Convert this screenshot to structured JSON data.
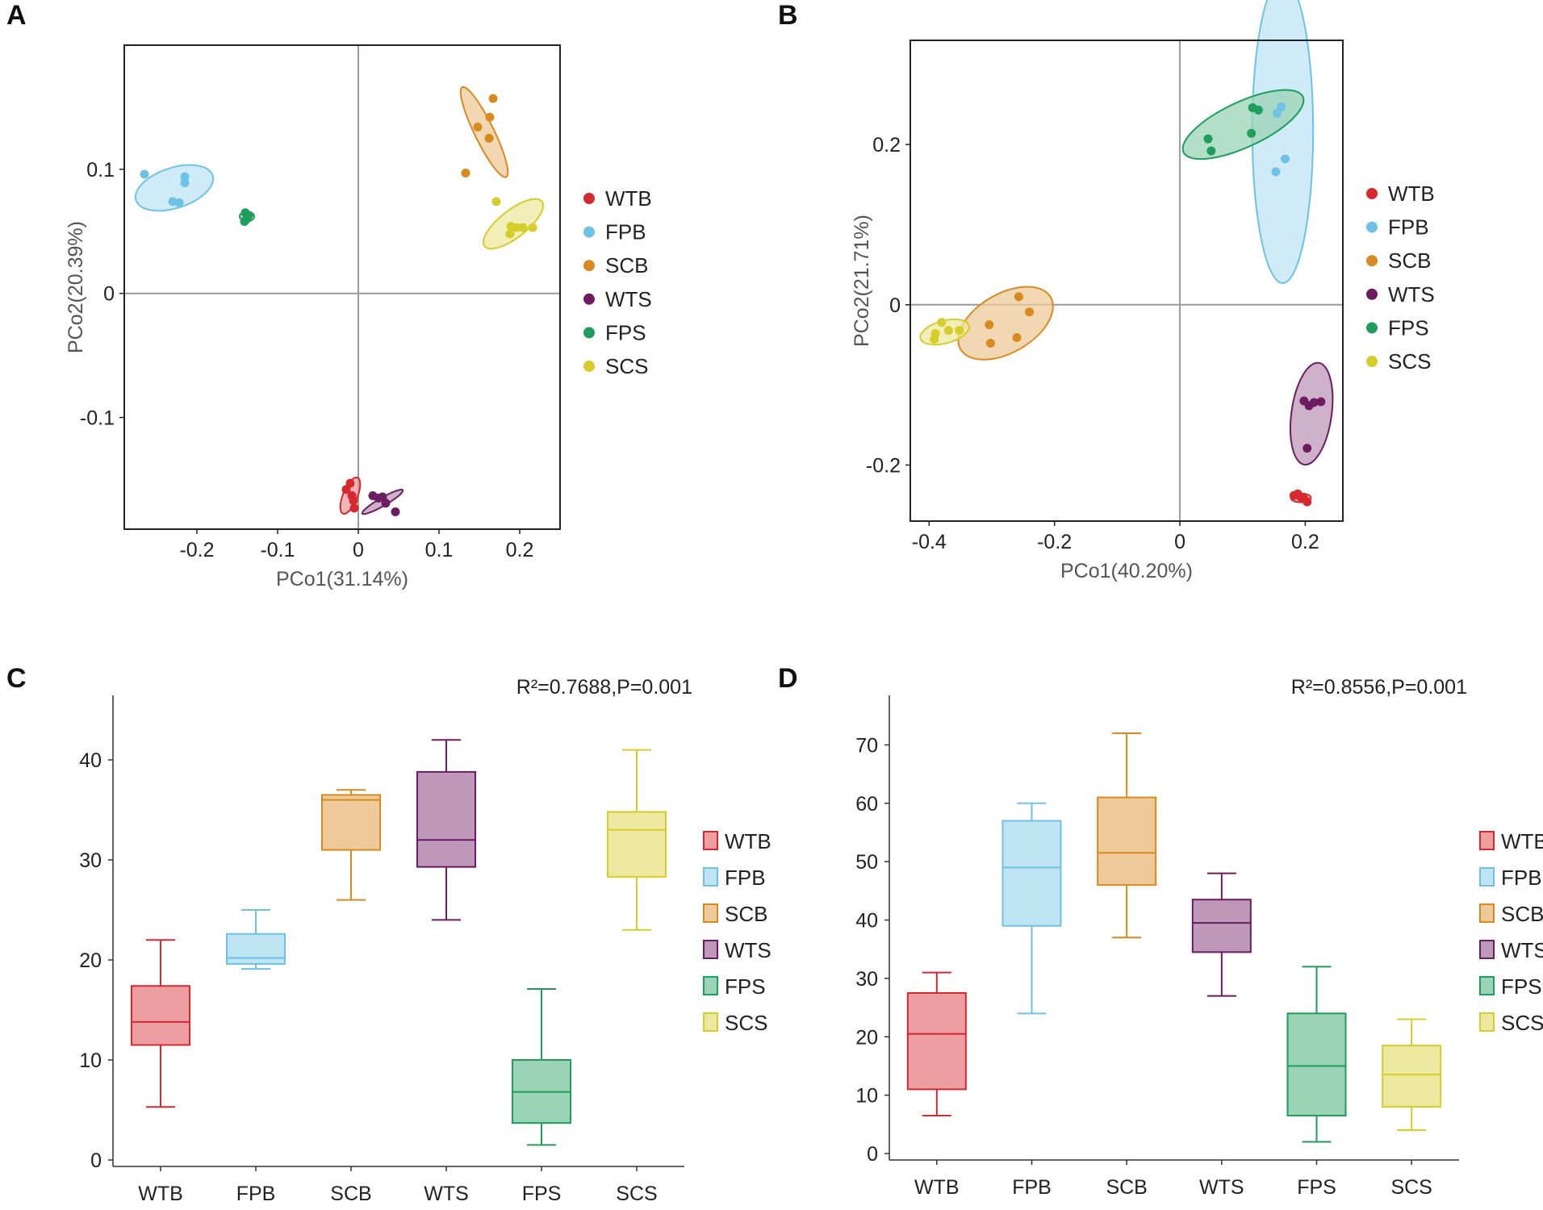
{
  "figure": {
    "groups": [
      "WTB",
      "FPB",
      "SCB",
      "WTS",
      "FPS",
      "SCS"
    ],
    "colors": {
      "WTB": "#d7282f",
      "FPB": "#6ec2e6",
      "SCB": "#d98a1e",
      "WTS": "#6d1b62",
      "FPS": "#1e9e5a",
      "SCS": "#d6cc2a"
    }
  },
  "chart_data": [
    {
      "panel": "A",
      "type": "scatter",
      "xlabel": "PCo1(31.14%)",
      "ylabel": "PCo2(20.39%)",
      "xlim": [
        -0.29,
        0.25
      ],
      "ylim": [
        -0.19,
        0.2
      ],
      "xticks": [
        -0.2,
        -0.1,
        0,
        0.1,
        0.2
      ],
      "xtick_labels": [
        "-0.2",
        "-0.1",
        "0",
        "0.1",
        "0.2"
      ],
      "yticks": [
        -0.1,
        0,
        0.1
      ],
      "ytick_labels": [
        "-0.1",
        "0",
        "0.1"
      ],
      "legend": [
        "WTB",
        "FPB",
        "SCB",
        "WTS",
        "FPS",
        "SCS"
      ],
      "series": [
        {
          "name": "WTB",
          "points": [
            [
              -0.015,
              -0.158
            ],
            [
              -0.01,
              -0.153
            ],
            [
              -0.008,
              -0.163
            ],
            [
              -0.006,
              -0.167
            ],
            [
              -0.005,
              -0.173
            ]
          ],
          "ellipse": {
            "cx": -0.01,
            "cy": -0.163,
            "rx": 0.024,
            "ry": 0.009,
            "angle": -68
          }
        },
        {
          "name": "FPB",
          "points": [
            [
              -0.265,
              0.096
            ],
            [
              -0.215,
              0.094
            ],
            [
              -0.215,
              0.089
            ],
            [
              -0.23,
              0.074
            ],
            [
              -0.222,
              0.073
            ]
          ],
          "ellipse": {
            "cx": -0.228,
            "cy": 0.085,
            "rx": 0.05,
            "ry": 0.025,
            "angle": -18
          }
        },
        {
          "name": "SCB",
          "points": [
            [
              0.167,
              0.157
            ],
            [
              0.163,
              0.142
            ],
            [
              0.148,
              0.134
            ],
            [
              0.162,
              0.125
            ],
            [
              0.133,
              0.097
            ]
          ],
          "ellipse": {
            "cx": 0.156,
            "cy": 0.13,
            "rx": 0.062,
            "ry": 0.012,
            "angle": 64
          }
        },
        {
          "name": "WTS",
          "points": [
            [
              0.018,
              -0.163
            ],
            [
              0.025,
              -0.165
            ],
            [
              0.03,
              -0.164
            ],
            [
              0.034,
              -0.169
            ],
            [
              0.046,
              -0.176
            ]
          ],
          "ellipse": {
            "cx": 0.03,
            "cy": -0.168,
            "rx": 0.029,
            "ry": 0.005,
            "angle": -30
          }
        },
        {
          "name": "FPS",
          "points": [
            [
              -0.14,
              0.065
            ],
            [
              -0.136,
              0.063
            ],
            [
              -0.138,
              0.06
            ],
            [
              -0.141,
              0.058
            ]
          ],
          "ellipse": {
            "cx": -0.138,
            "cy": 0.062,
            "rx": 0.009,
            "ry": 0.006,
            "angle": 0
          }
        },
        {
          "name": "SCS",
          "points": [
            [
              0.171,
              0.074
            ],
            [
              0.189,
              0.054
            ],
            [
              0.196,
              0.053
            ],
            [
              0.204,
              0.053
            ],
            [
              0.216,
              0.053
            ],
            [
              0.188,
              0.048
            ]
          ],
          "ellipse": {
            "cx": 0.192,
            "cy": 0.056,
            "rx": 0.045,
            "ry": 0.017,
            "angle": -38
          }
        }
      ]
    },
    {
      "panel": "B",
      "type": "scatter",
      "xlabel": "PCo1(40.20%)",
      "ylabel": "PCo2(21.71%)",
      "xlim": [
        -0.43,
        0.26
      ],
      "ylim": [
        -0.27,
        0.33
      ],
      "xticks": [
        -0.4,
        -0.2,
        0,
        0.2
      ],
      "xtick_labels": [
        "-0.4",
        "-0.2",
        "0",
        "0.2"
      ],
      "yticks": [
        -0.2,
        0,
        0.2
      ],
      "ytick_labels": [
        "-0.2",
        "0",
        "0.2"
      ],
      "legend": [
        "WTB",
        "FPB",
        "SCB",
        "WTS",
        "FPS",
        "SCS"
      ],
      "series": [
        {
          "name": "WTB",
          "points": [
            [
              0.182,
              -0.238
            ],
            [
              0.188,
              -0.236
            ],
            [
              0.193,
              -0.24
            ],
            [
              0.198,
              -0.242
            ],
            [
              0.203,
              -0.246
            ]
          ],
          "ellipse": {
            "cx": 0.193,
            "cy": -0.241,
            "rx": 0.016,
            "ry": 0.007,
            "angle": 0
          }
        },
        {
          "name": "FPB",
          "points": [
            [
              0.162,
              0.247
            ],
            [
              0.155,
              0.239
            ],
            [
              0.126,
              0.243
            ],
            [
              0.168,
              0.182
            ],
            [
              0.153,
              0.166
            ]
          ],
          "ellipse": {
            "cx": 0.164,
            "cy": 0.217,
            "rx": 0.19,
            "ry": 0.038,
            "angle": 90
          }
        },
        {
          "name": "SCB",
          "points": [
            [
              -0.257,
              0.01
            ],
            [
              -0.24,
              -0.009
            ],
            [
              -0.304,
              -0.025
            ],
            [
              -0.26,
              -0.041
            ],
            [
              -0.302,
              -0.048
            ]
          ],
          "ellipse": {
            "cx": -0.278,
            "cy": -0.023,
            "rx": 0.083,
            "ry": 0.047,
            "angle": -30
          }
        },
        {
          "name": "WTS",
          "points": [
            [
              0.198,
              -0.12
            ],
            [
              0.206,
              -0.126
            ],
            [
              0.214,
              -0.122
            ],
            [
              0.225,
              -0.121
            ],
            [
              0.203,
              -0.179
            ]
          ],
          "ellipse": {
            "cx": 0.21,
            "cy": -0.136,
            "rx": 0.082,
            "ry": 0.032,
            "angle": -82
          }
        },
        {
          "name": "FPS",
          "points": [
            [
              0.116,
              0.246
            ],
            [
              0.125,
              0.243
            ],
            [
              0.114,
              0.214
            ],
            [
              0.045,
              0.207
            ],
            [
              0.05,
              0.192
            ]
          ],
          "ellipse": {
            "cx": 0.101,
            "cy": 0.225,
            "rx": 0.105,
            "ry": 0.036,
            "angle": -25
          }
        },
        {
          "name": "SCS",
          "points": [
            [
              -0.38,
              -0.022
            ],
            [
              -0.369,
              -0.032
            ],
            [
              -0.352,
              -0.032
            ],
            [
              -0.39,
              -0.036
            ],
            [
              -0.392,
              -0.043
            ]
          ],
          "ellipse": {
            "cx": -0.375,
            "cy": -0.034,
            "rx": 0.04,
            "ry": 0.018,
            "angle": -15
          }
        }
      ]
    },
    {
      "panel": "C",
      "type": "box",
      "annotation": "R²=0.7688,P=0.001",
      "categories": [
        "WTB",
        "FPB",
        "SCB",
        "WTS",
        "FPS",
        "SCS"
      ],
      "ylim": [
        0,
        45
      ],
      "yticks": [
        0,
        10,
        20,
        30,
        40
      ],
      "ytick_labels": [
        "0",
        "10",
        "20",
        "30",
        "40"
      ],
      "legend": [
        "WTB",
        "FPB",
        "SCB",
        "WTS",
        "FPS",
        "SCS"
      ],
      "boxes": [
        {
          "name": "WTB",
          "min": 5.3,
          "q1": 11.5,
          "median": 13.8,
          "q3": 17.4,
          "max": 22.0
        },
        {
          "name": "FPB",
          "min": 19.1,
          "q1": 19.6,
          "median": 20.2,
          "q3": 22.6,
          "max": 25.0
        },
        {
          "name": "SCB",
          "min": 26.0,
          "q1": 31.0,
          "median": 36.0,
          "q3": 36.5,
          "max": 37.0
        },
        {
          "name": "WTS",
          "min": 24.0,
          "q1": 29.3,
          "median": 32.0,
          "q3": 38.8,
          "max": 42.0
        },
        {
          "name": "FPS",
          "min": 1.5,
          "q1": 3.7,
          "median": 6.8,
          "q3": 10.0,
          "max": 17.1
        },
        {
          "name": "SCS",
          "min": 23.0,
          "q1": 28.3,
          "median": 33.0,
          "q3": 34.8,
          "max": 41.0
        }
      ]
    },
    {
      "panel": "D",
      "type": "box",
      "annotation": "R²=0.8556,P=0.001",
      "categories": [
        "WTB",
        "FPB",
        "SCB",
        "WTS",
        "FPS",
        "SCS"
      ],
      "ylim": [
        0,
        76
      ],
      "yticks": [
        0,
        10,
        20,
        30,
        40,
        50,
        60,
        70
      ],
      "ytick_labels": [
        "0",
        "10",
        "20",
        "30",
        "40",
        "50",
        "60",
        "70"
      ],
      "legend": [
        "WTB",
        "FPB",
        "SCB",
        "WTS",
        "FPS",
        "SCS"
      ],
      "boxes": [
        {
          "name": "WTB",
          "min": 6.5,
          "q1": 11.0,
          "median": 20.5,
          "q3": 27.5,
          "max": 31.0
        },
        {
          "name": "FPB",
          "min": 24.0,
          "q1": 39.0,
          "median": 49.0,
          "q3": 57.0,
          "max": 60.0
        },
        {
          "name": "SCB",
          "min": 37.0,
          "q1": 46.0,
          "median": 51.5,
          "q3": 61.0,
          "max": 72.0
        },
        {
          "name": "WTS",
          "min": 27.0,
          "q1": 34.5,
          "median": 39.5,
          "q3": 43.5,
          "max": 48.0
        },
        {
          "name": "FPS",
          "min": 2.0,
          "q1": 6.5,
          "median": 15.0,
          "q3": 24.0,
          "max": 32.0
        },
        {
          "name": "SCS",
          "min": 4.0,
          "q1": 8.0,
          "median": 13.5,
          "q3": 18.5,
          "max": 23.0
        }
      ]
    }
  ]
}
